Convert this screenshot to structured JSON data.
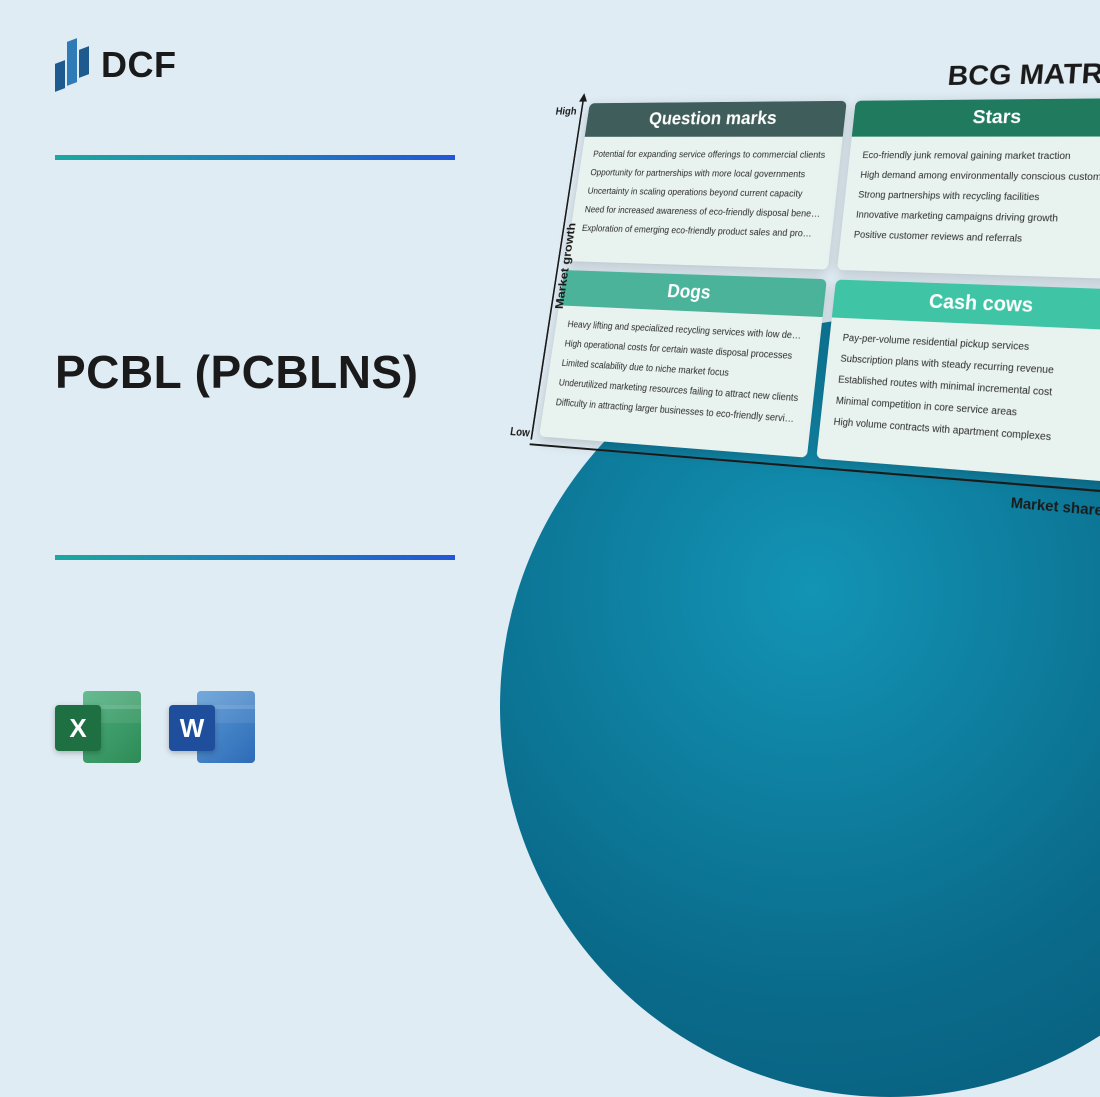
{
  "logo": {
    "text": "DCF"
  },
  "title": "PCBL (PCBLNS)",
  "icons": {
    "excel": "X",
    "word": "W"
  },
  "colors": {
    "background": "#e0ecf4",
    "divider_gradient_start": "#1ba8a0",
    "divider_gradient_end": "#2456d6",
    "circle_center": "#1394b5",
    "circle_edge": "#075a78",
    "qm_header": "#3f5e5b",
    "stars_header": "#1f7a5e",
    "dogs_header": "#4bb39a",
    "cows_header": "#3fc4a6",
    "quad_bg": "#e8f2ef"
  },
  "matrix": {
    "title": "BCG MATRIX",
    "y_axis": "Market growth",
    "x_axis": "Market share",
    "tick_high": "High",
    "tick_low": "Low",
    "quadrants": {
      "question_marks": {
        "label": "Question marks",
        "items": [
          "Potential for expanding service offerings to commercial clients",
          "Opportunity for partnerships with more local governments",
          "Uncertainty in scaling operations beyond current capacity",
          "Need for increased awareness of eco-friendly disposal benefits",
          "Exploration of emerging eco-friendly product sales and promotions"
        ]
      },
      "stars": {
        "label": "Stars",
        "items": [
          "Eco-friendly junk removal gaining market traction",
          "High demand among environmentally conscious customers",
          "Strong partnerships with recycling facilities",
          "Innovative marketing campaigns driving growth",
          "Positive customer reviews and referrals"
        ]
      },
      "dogs": {
        "label": "Dogs",
        "items": [
          "Heavy lifting and specialized recycling services with low demand",
          "High operational costs for certain waste disposal processes",
          "Limited scalability due to niche market focus",
          "Underutilized marketing resources failing to attract new clients",
          "Difficulty in attracting larger businesses to eco-friendly services"
        ]
      },
      "cash_cows": {
        "label": "Cash cows",
        "items": [
          "Pay-per-volume residential pickup services",
          "Subscription plans with steady recurring revenue",
          "Established routes with minimal incremental cost",
          "Minimal competition in core service areas",
          "High volume contracts with apartment complexes"
        ]
      }
    }
  }
}
